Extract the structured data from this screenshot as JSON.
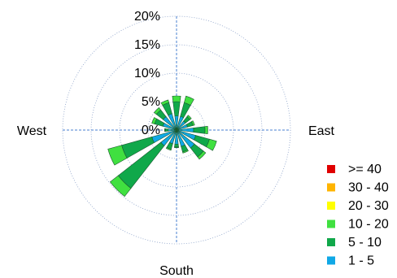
{
  "chart_data": {
    "type": "windrose",
    "x": [
      0,
      22.5,
      45,
      67.5,
      90,
      112.5,
      135,
      157.5,
      180,
      202.5,
      225,
      247.5,
      270,
      292.5,
      315,
      337.5
    ],
    "rlim": [
      0,
      20
    ],
    "rticks": [
      {
        "value": 0,
        "label": "0%"
      },
      {
        "value": 5,
        "label": "5%"
      },
      {
        "value": 10,
        "label": "10%"
      },
      {
        "value": 15,
        "label": "15%"
      },
      {
        "value": 20,
        "label": "20%"
      }
    ],
    "direction_labels": [
      {
        "value": 270,
        "label": "West"
      },
      {
        "value": 90,
        "label": "East"
      },
      {
        "value": 180,
        "label": "South"
      }
    ],
    "grid": true,
    "legend": "right",
    "series": [
      {
        "name": "1 - 5",
        "color": "#10a8e6",
        "values": [
          2.5,
          2.5,
          2.0,
          2.0,
          3.0,
          3.5,
          4.0,
          3.0,
          2.5,
          2.5,
          3.5,
          4.5,
          1.5,
          2.5,
          3.0,
          3.0
        ]
      },
      {
        "name": "5 - 10",
        "color": "#10a84a",
        "values": [
          2.5,
          2.5,
          1.0,
          1.0,
          2.0,
          2.5,
          2.0,
          1.0,
          0.5,
          1.0,
          9.5,
          5.5,
          0.5,
          1.5,
          1.5,
          2.0
        ]
      },
      {
        "name": "10 - 20",
        "color": "#40e040",
        "values": [
          1.0,
          1.2,
          0.3,
          0.3,
          0.5,
          1.3,
          0.5,
          0.2,
          0.1,
          0.2,
          1.8,
          2.5,
          0.1,
          0.5,
          0.5,
          0.5
        ]
      },
      {
        "name": "20 - 30",
        "color": "#ffff00",
        "values": [
          0,
          0,
          0,
          0,
          0,
          0,
          0,
          0,
          0,
          0,
          0,
          0,
          0,
          0,
          0,
          0
        ]
      },
      {
        "name": "30 - 40",
        "color": "#ffb400",
        "values": [
          0,
          0,
          0,
          0,
          0,
          0,
          0,
          0,
          0,
          0,
          0,
          0,
          0,
          0,
          0,
          0
        ]
      },
      {
        "name": ">= 40",
        "color": "#e00000",
        "values": [
          0,
          0,
          0,
          0,
          0,
          0,
          0,
          0,
          0,
          0,
          0,
          0,
          0,
          0,
          0,
          0
        ]
      }
    ]
  }
}
